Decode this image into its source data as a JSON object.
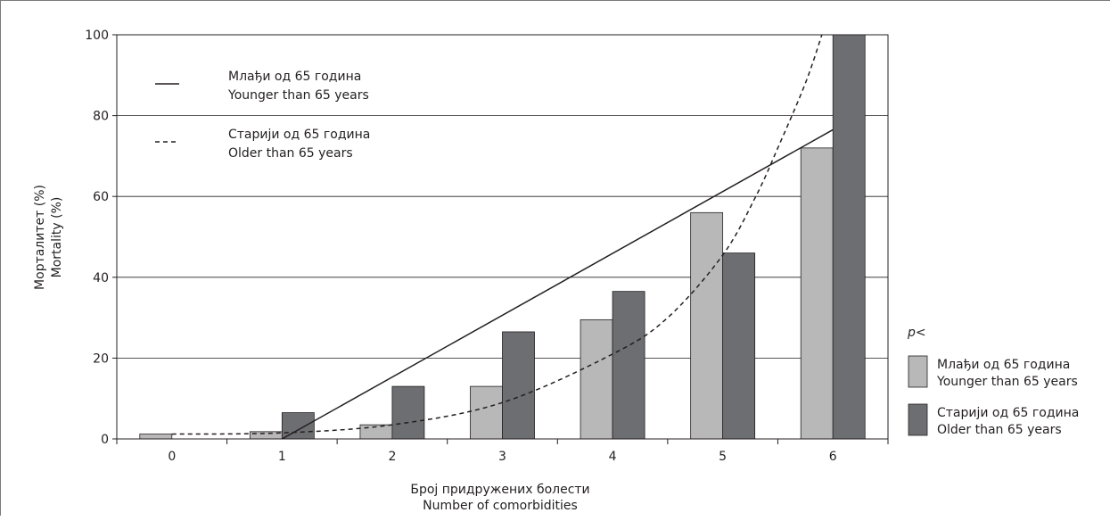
{
  "chart_data": {
    "type": "bar",
    "xlabel_lines": [
      "Број придружених  болести",
      "Number of comorbidities"
    ],
    "ylabel_lines": [
      "Морталитет (%)",
      "Mortality (%)"
    ],
    "categories": [
      "0",
      "1",
      "2",
      "3",
      "4",
      "5",
      "6"
    ],
    "ylim": [
      0,
      100
    ],
    "yticks": [
      0,
      20,
      40,
      60,
      80,
      100
    ],
    "grid": true,
    "series": [
      {
        "name": "Млађи од 65 година / Younger than 65 years",
        "color": "#b8b8b8",
        "values": [
          1.2,
          1.8,
          3.5,
          13.0,
          29.5,
          56.0,
          72.0
        ]
      },
      {
        "name": "Старији од 65 година / Older than 65 years",
        "color": "#6d6e71",
        "values": [
          0,
          6.5,
          13.0,
          26.5,
          36.5,
          46.0,
          100
        ]
      }
    ],
    "trendlines": [
      {
        "name": "Млађи од 65 година / Younger than 65 years",
        "style": "solid",
        "kind": "linear",
        "points": [
          [
            1,
            0
          ],
          [
            6,
            76.5
          ]
        ]
      },
      {
        "name": "Старији од 65 година / Older than 65 years",
        "style": "dashed",
        "kind": "exponential",
        "points": [
          [
            0,
            1.2
          ],
          [
            1,
            1.5
          ],
          [
            2,
            3.5
          ],
          [
            3,
            9.0
          ],
          [
            4,
            21.0
          ],
          [
            4.5,
            30.0
          ],
          [
            5,
            45.5
          ],
          [
            5.3,
            60.0
          ],
          [
            5.5,
            72.0
          ],
          [
            5.75,
            88.0
          ],
          [
            5.9,
            100.0
          ]
        ]
      }
    ],
    "line_legend": [
      {
        "style": "solid",
        "lines": [
          "Млађи од 65 година",
          "Younger than 65 years"
        ]
      },
      {
        "style": "dashed",
        "lines": [
          "Старији од 65 година",
          "Older than 65 years"
        ]
      }
    ],
    "bar_legend": {
      "title": "p<",
      "items": [
        {
          "color": "#b8b8b8",
          "lines": [
            "Млађи од 65 година",
            "Younger than 65 years"
          ]
        },
        {
          "color": "#6d6e71",
          "lines": [
            "Старији од 65 година",
            "Older than 65 years"
          ]
        }
      ]
    }
  }
}
